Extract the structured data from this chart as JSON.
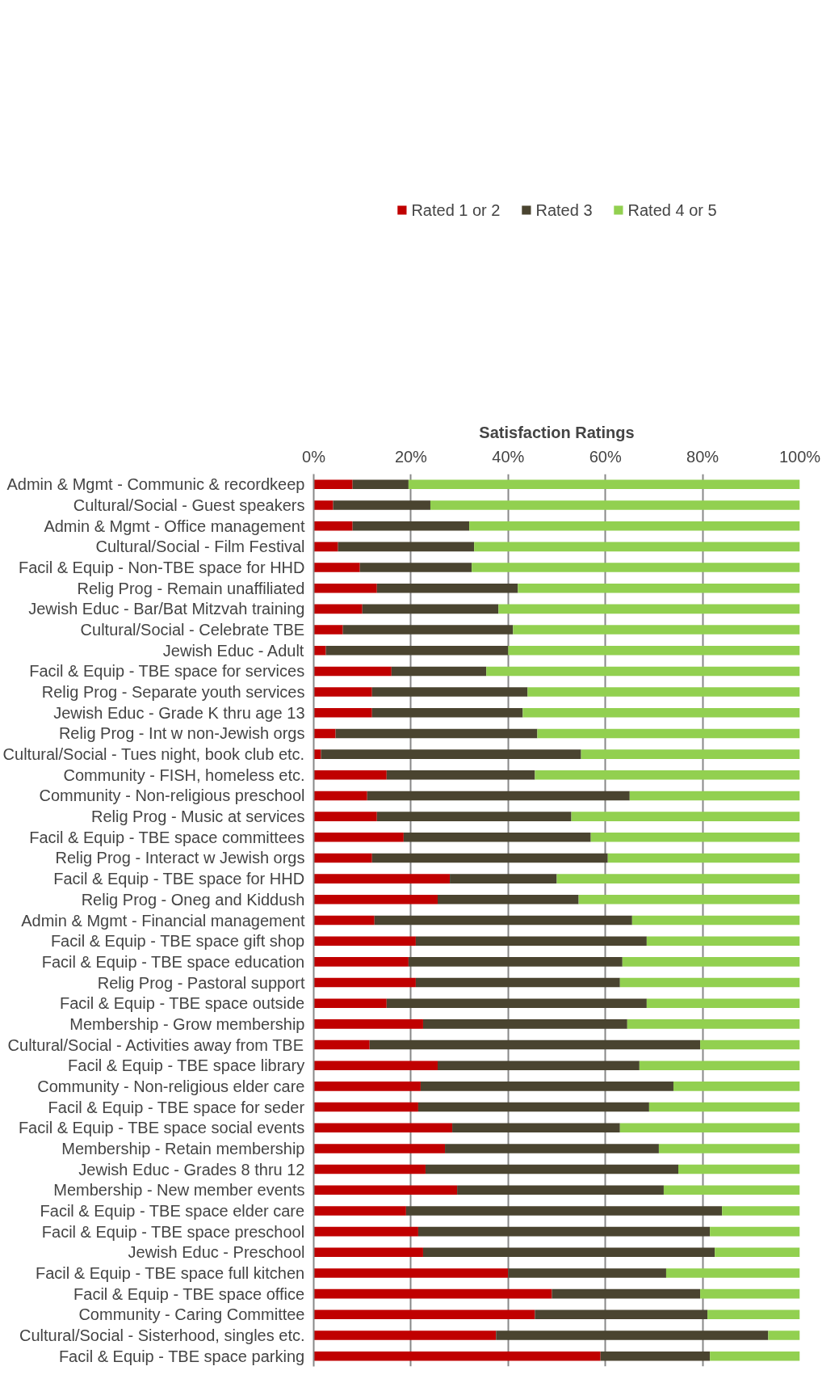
{
  "chart_data": {
    "type": "bar",
    "orientation": "horizontal",
    "stacked": true,
    "xlabel": "Satisfaction Ratings",
    "categories": [
      "Admin & Mgmt - Communic & recordkeep",
      "Cultural/Social - Guest speakers",
      "Admin & Mgmt - Office management",
      "Cultural/Social - Film Festival",
      "Facil & Equip - Non-TBE space for HHD",
      "Relig Prog - Remain unaffiliated",
      "Jewish Educ - Bar/Bat Mitzvah training",
      "Cultural/Social - Celebrate TBE",
      "Jewish Educ - Adult",
      "Facil & Equip - TBE space for services",
      "Relig Prog - Separate youth services",
      "Jewish Educ - Grade K thru age 13",
      "Relig Prog - Int w non-Jewish orgs",
      "Cultural/Social - Tues night, book club etc.",
      "Community - FISH, homeless etc.",
      "Community - Non-religious preschool",
      "Relig Prog - Music at services",
      "Facil & Equip - TBE space committees",
      "Relig Prog - Interact w Jewish orgs",
      "Facil & Equip - TBE space for HHD",
      "Relig Prog - Oneg and Kiddush",
      "Admin & Mgmt - Financial management",
      "Facil & Equip - TBE space gift shop",
      "Facil & Equip - TBE space education",
      "Relig Prog - Pastoral support",
      "Facil & Equip - TBE space outside",
      "Membership - Grow membership",
      "Cultural/Social - Activities away from TBE",
      "Facil & Equip - TBE space library",
      "Community - Non-religious elder care",
      "Facil & Equip - TBE space for seder",
      "Facil & Equip - TBE space social events",
      "Membership - Retain membership",
      "Jewish Educ - Grades 8 thru 12",
      "Membership - New member events",
      "Facil & Equip - TBE space elder care",
      "Facil & Equip - TBE space preschool",
      "Jewish Educ - Preschool",
      "Facil & Equip - TBE space full kitchen",
      "Facil & Equip - TBE space office",
      "Community - Caring Committee",
      "Cultural/Social - Sisterhood, singles etc.",
      "Facil & Equip - TBE space parking"
    ],
    "series": [
      {
        "name": "Rated 1 or 2",
        "color": "#c00000",
        "values": [
          8,
          4,
          8,
          5,
          9.5,
          13,
          10,
          6,
          2.5,
          16,
          12,
          12,
          4.5,
          1.5,
          15,
          11,
          13,
          18.5,
          12,
          28,
          25.5,
          12.5,
          21,
          19.5,
          21,
          15,
          22.5,
          11.5,
          25.5,
          22,
          21.5,
          28.5,
          27,
          23,
          29.5,
          19,
          21.5,
          22.5,
          40,
          49,
          45.5,
          37.5,
          59
        ]
      },
      {
        "name": "Rated 3",
        "color": "#4a4430",
        "values": [
          11.5,
          20,
          24,
          28,
          23,
          29,
          28,
          35,
          37.5,
          19.5,
          32,
          31,
          41.5,
          53.5,
          30.5,
          54,
          40,
          38.5,
          48.5,
          22,
          29,
          53,
          47.5,
          44,
          42,
          53.5,
          42,
          68,
          41.5,
          52,
          47.5,
          34.5,
          44,
          52,
          42.5,
          65,
          60,
          60,
          32.5,
          30.5,
          35.5,
          56,
          22.5
        ]
      },
      {
        "name": "Rated 4 or 5",
        "color": "#92d050",
        "values": [
          80.5,
          76,
          68,
          67,
          67.5,
          58,
          62,
          59,
          60,
          64.5,
          56,
          57,
          54,
          45,
          54.5,
          35,
          47,
          43,
          39.5,
          50,
          45.5,
          34.5,
          31.5,
          36.5,
          37,
          31.5,
          35.5,
          20.5,
          33,
          26,
          31,
          37,
          29,
          25,
          28,
          16,
          18.5,
          17.5,
          27.5,
          20.5,
          19,
          6.5,
          18.5
        ]
      }
    ],
    "xlim": [
      0,
      100
    ],
    "xticks": [
      {
        "value": 0,
        "label": "0%"
      },
      {
        "value": 20,
        "label": "20%"
      },
      {
        "value": 40,
        "label": "40%"
      },
      {
        "value": 60,
        "label": "60%"
      },
      {
        "value": 80,
        "label": "80%"
      },
      {
        "value": 100,
        "label": "100%"
      }
    ],
    "grid": "x",
    "legend": "top"
  }
}
